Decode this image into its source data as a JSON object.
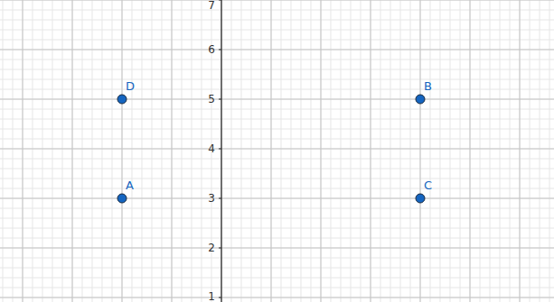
{
  "chart_data": {
    "type": "scatter",
    "x": [
      -2,
      4,
      4,
      -2
    ],
    "values": [
      3,
      5,
      3,
      5
    ],
    "point_labels": [
      "A",
      "B",
      "C",
      "D"
    ],
    "color": "#1565c0",
    "xlim": [
      -4.4545,
      6.6909
    ],
    "ylim": [
      0.9091,
      7
    ],
    "xticks": [
      -4,
      -3,
      -2,
      -1,
      0,
      1,
      2,
      3,
      4,
      5,
      6
    ],
    "yticks": [
      1,
      2,
      3,
      4,
      5,
      6,
      7
    ],
    "grid": true,
    "tick_labels": "y"
  }
}
